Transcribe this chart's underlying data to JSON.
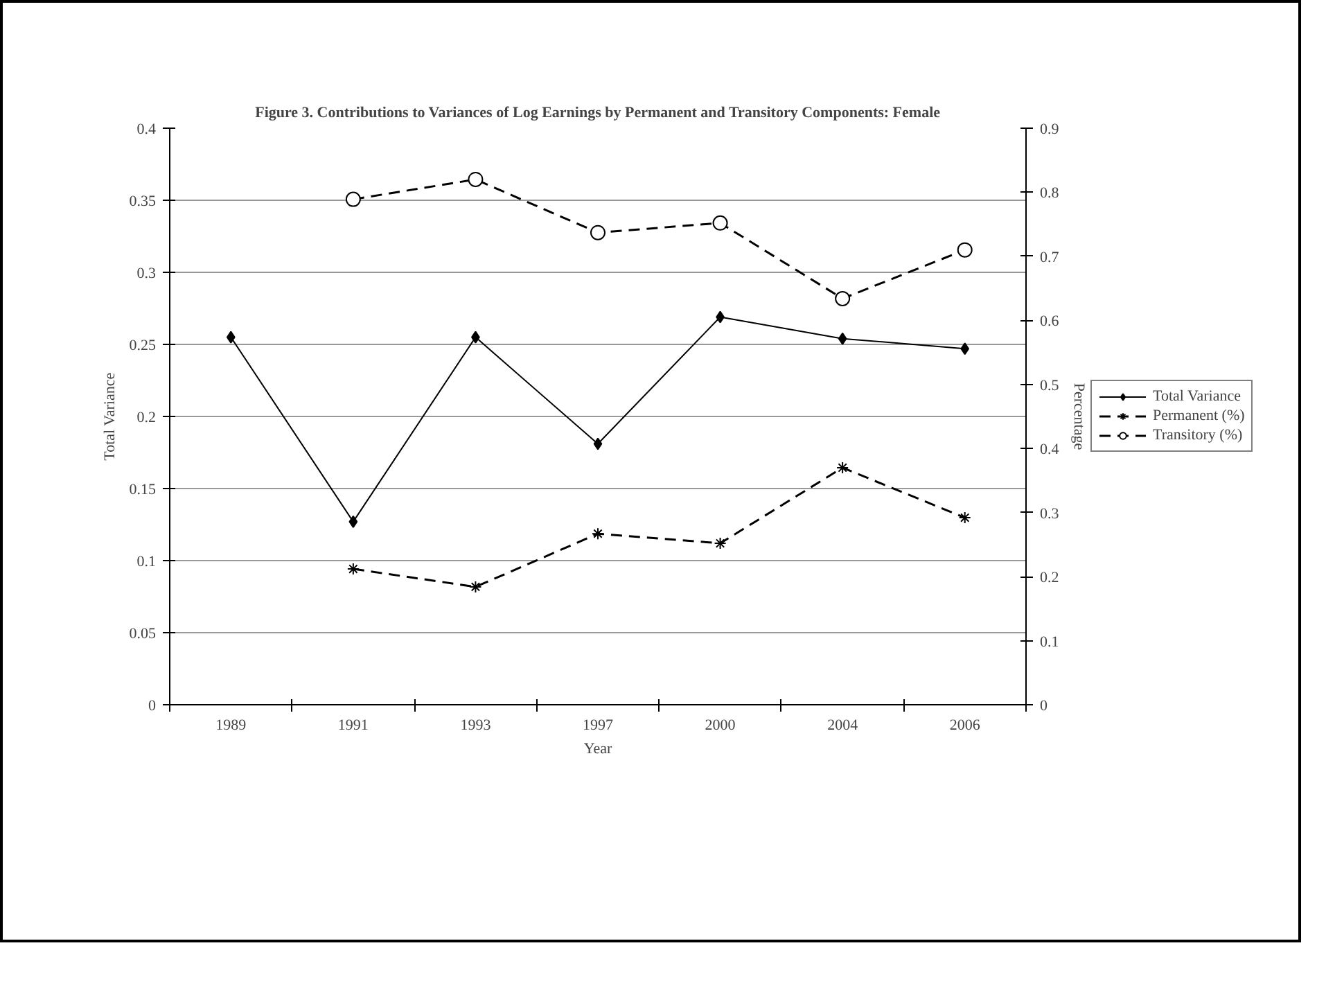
{
  "chart_data": {
    "type": "line",
    "title": "Figure 3. Contributions to Variances of Log Earnings by Permanent and Transitory Components: Female",
    "xlabel": "Year",
    "ylabel": "Total Variance",
    "y2label": "Percentage",
    "categories": [
      "1989",
      "1991",
      "1993",
      "1997",
      "2000",
      "2004",
      "2006"
    ],
    "series": [
      {
        "name": "Total Variance",
        "color": "#000000",
        "marker": "diamond",
        "line_style": "solid",
        "values": [
          0.255,
          0.127,
          0.255,
          0.181,
          0.269,
          0.254,
          0.247
        ]
      },
      {
        "name": "Permanent (%)",
        "color": "#000000",
        "marker": "cross",
        "line_style": "dashed",
        "axis": "y2",
        "values": [
          null,
          0.212,
          0.184,
          0.267,
          0.252,
          0.37,
          0.292
        ]
      },
      {
        "name": "Transitory (%)",
        "color": "#000000",
        "marker": "circle",
        "line_style": "dashed",
        "axis": "y2",
        "values": [
          null,
          0.789,
          0.82,
          0.737,
          0.752,
          0.634,
          0.71
        ]
      }
    ],
    "ylim": [
      0,
      0.4
    ],
    "yticks": [
      0,
      0.05,
      0.1,
      0.15,
      0.2,
      0.25,
      0.3,
      0.35,
      0.4
    ],
    "y2lim": [
      0,
      0.9
    ],
    "y2ticks": [
      0,
      0.1,
      0.2,
      0.3,
      0.4,
      0.5,
      0.6,
      0.7,
      0.8,
      0.9
    ],
    "grid": "y",
    "legend": "right"
  }
}
